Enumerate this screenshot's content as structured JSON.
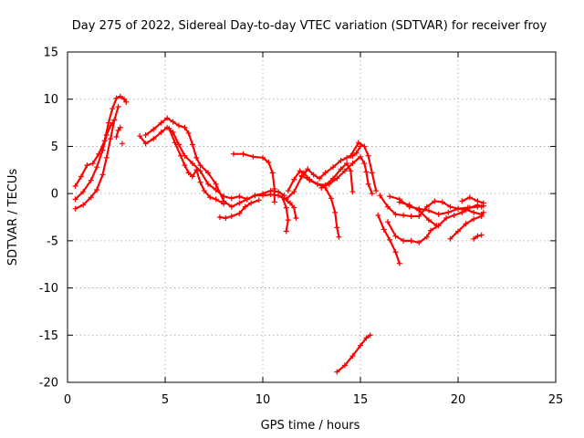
{
  "chart_data": {
    "type": "scatter",
    "title": "Day 275 of 2022, Sidereal Day-to-day VTEC variation (SDTVAR) for receiver froy",
    "xlabel": "GPS time / hours",
    "ylabel": "SDTVAR / TECUs",
    "xlim": [
      0,
      25
    ],
    "ylim": [
      -20,
      15
    ],
    "xticks": [
      0,
      5,
      10,
      15,
      20,
      25
    ],
    "yticks": [
      15,
      10,
      5,
      0,
      -5,
      -10,
      -15,
      -20
    ],
    "grid": true,
    "marker": "+",
    "color": "#ff0000",
    "series": [
      {
        "name": "segment-1",
        "points": [
          [
            0.4,
            0.8
          ],
          [
            0.7,
            1.8
          ],
          [
            1.0,
            3.0
          ],
          [
            1.3,
            3.2
          ],
          [
            1.6,
            4.2
          ],
          [
            1.9,
            5.6
          ],
          [
            2.1,
            7.5
          ],
          [
            2.3,
            9.0
          ],
          [
            2.5,
            10.1
          ],
          [
            2.7,
            10.3
          ],
          [
            2.9,
            10.0
          ],
          [
            3.0,
            9.7
          ]
        ]
      },
      {
        "name": "segment-2",
        "points": [
          [
            0.4,
            -1.6
          ],
          [
            0.8,
            -1.2
          ],
          [
            1.2,
            -0.4
          ],
          [
            1.5,
            0.4
          ],
          [
            1.8,
            2.0
          ],
          [
            2.0,
            3.8
          ],
          [
            2.2,
            5.8
          ],
          [
            2.4,
            7.8
          ],
          [
            2.6,
            9.2
          ]
        ]
      },
      {
        "name": "segment-3",
        "points": [
          [
            0.4,
            -0.6
          ],
          [
            0.8,
            0.2
          ],
          [
            1.2,
            1.4
          ],
          [
            1.5,
            2.8
          ],
          [
            1.8,
            4.6
          ],
          [
            2.0,
            6.2
          ],
          [
            2.2,
            7.2
          ],
          [
            2.4,
            7.8
          ]
        ]
      },
      {
        "name": "segment-4",
        "points": [
          [
            2.5,
            6.0
          ],
          [
            2.6,
            6.7
          ],
          [
            2.7,
            7.0
          ]
        ]
      },
      {
        "name": "segment-5",
        "points": [
          [
            2.8,
            5.3
          ]
        ]
      },
      {
        "name": "segment-6",
        "points": [
          [
            3.7,
            6.1
          ],
          [
            4.0,
            5.3
          ],
          [
            4.4,
            5.8
          ],
          [
            4.8,
            6.5
          ],
          [
            5.1,
            7.0
          ],
          [
            5.4,
            6.5
          ],
          [
            5.7,
            5.2
          ],
          [
            6.0,
            4.0
          ],
          [
            6.4,
            3.2
          ],
          [
            6.8,
            2.4
          ],
          [
            7.2,
            1.0
          ],
          [
            7.6,
            0.4
          ],
          [
            8.0,
            -0.3
          ],
          [
            8.4,
            -0.5
          ],
          [
            8.8,
            -0.3
          ],
          [
            9.2,
            -0.6
          ],
          [
            9.6,
            -0.2
          ],
          [
            10.0,
            -0.2
          ],
          [
            10.4,
            -0.1
          ],
          [
            10.8,
            -0.2
          ],
          [
            11.2,
            -0.6
          ],
          [
            11.6,
            0.2
          ],
          [
            12.0,
            1.8
          ],
          [
            12.3,
            2.6
          ],
          [
            12.6,
            2.0
          ],
          [
            12.9,
            1.6
          ],
          [
            13.2,
            2.2
          ],
          [
            13.6,
            2.8
          ],
          [
            14.0,
            3.5
          ],
          [
            14.3,
            3.8
          ],
          [
            14.6,
            4.0
          ],
          [
            14.8,
            4.3
          ],
          [
            15.0,
            5.0
          ]
        ]
      },
      {
        "name": "segment-7",
        "points": [
          [
            4.0,
            6.2
          ],
          [
            4.4,
            6.8
          ],
          [
            4.8,
            7.5
          ],
          [
            5.1,
            8.0
          ],
          [
            5.4,
            7.6
          ],
          [
            5.7,
            7.2
          ],
          [
            6.0,
            7.0
          ],
          [
            6.2,
            6.4
          ],
          [
            6.4,
            5.2
          ],
          [
            6.6,
            3.8
          ],
          [
            6.8,
            3.0
          ],
          [
            7.2,
            2.2
          ],
          [
            7.6,
            1.0
          ],
          [
            8.0,
            -0.8
          ],
          [
            8.4,
            -1.4
          ],
          [
            8.8,
            -1.0
          ],
          [
            9.2,
            -0.6
          ],
          [
            9.6,
            -0.2
          ],
          [
            10.0,
            0.0
          ],
          [
            10.4,
            0.3
          ],
          [
            10.8,
            0.2
          ],
          [
            11.1,
            -0.2
          ]
        ]
      },
      {
        "name": "segment-8",
        "points": [
          [
            5.2,
            6.9
          ],
          [
            5.5,
            5.4
          ],
          [
            5.8,
            4.0
          ],
          [
            6.0,
            3.0
          ],
          [
            6.2,
            2.2
          ],
          [
            6.4,
            1.8
          ],
          [
            6.6,
            2.5
          ],
          [
            6.8,
            1.2
          ],
          [
            7.0,
            0.3
          ],
          [
            7.3,
            -0.4
          ],
          [
            7.6,
            -0.6
          ],
          [
            8.0,
            -1.1
          ]
        ]
      },
      {
        "name": "segment-9",
        "points": [
          [
            7.8,
            -2.5
          ],
          [
            8.1,
            -2.6
          ],
          [
            8.4,
            -2.4
          ],
          [
            8.8,
            -2.1
          ],
          [
            9.1,
            -1.4
          ],
          [
            9.4,
            -1.0
          ],
          [
            9.8,
            -0.7
          ]
        ]
      },
      {
        "name": "segment-10",
        "points": [
          [
            8.5,
            4.2
          ],
          [
            9.0,
            4.2
          ],
          [
            9.5,
            3.9
          ],
          [
            10.0,
            3.8
          ],
          [
            10.3,
            3.3
          ],
          [
            10.5,
            2.2
          ],
          [
            10.6,
            0.5
          ],
          [
            10.6,
            -0.9
          ]
        ]
      },
      {
        "name": "segment-11",
        "points": [
          [
            11.0,
            -0.4
          ],
          [
            11.2,
            -1.5
          ],
          [
            11.3,
            -2.8
          ],
          [
            11.2,
            -4.0
          ]
        ]
      },
      {
        "name": "segment-12",
        "points": [
          [
            11.1,
            -0.5
          ],
          [
            11.4,
            -1.0
          ],
          [
            11.6,
            -1.5
          ],
          [
            11.7,
            -2.6
          ]
        ]
      },
      {
        "name": "segment-13",
        "points": [
          [
            11.3,
            0.3
          ],
          [
            11.6,
            1.5
          ],
          [
            11.9,
            2.4
          ],
          [
            12.1,
            2.2
          ],
          [
            12.4,
            1.5
          ],
          [
            12.8,
            1.0
          ],
          [
            13.2,
            0.6
          ],
          [
            13.5,
            -0.5
          ],
          [
            13.7,
            -2.0
          ],
          [
            13.8,
            -3.6
          ],
          [
            13.9,
            -4.6
          ]
        ]
      },
      {
        "name": "segment-14",
        "points": [
          [
            12.0,
            1.9
          ],
          [
            12.4,
            1.4
          ],
          [
            12.8,
            1.0
          ],
          [
            13.2,
            0.9
          ],
          [
            13.6,
            1.6
          ],
          [
            14.0,
            2.6
          ],
          [
            14.3,
            3.2
          ],
          [
            14.5,
            2.4
          ],
          [
            14.6,
            0.2
          ]
        ]
      },
      {
        "name": "segment-15",
        "points": [
          [
            13.0,
            0.6
          ],
          [
            13.4,
            1.0
          ],
          [
            13.8,
            1.6
          ],
          [
            14.2,
            2.4
          ],
          [
            14.6,
            3.2
          ],
          [
            15.0,
            3.9
          ],
          [
            15.2,
            3.2
          ],
          [
            15.3,
            2.3
          ],
          [
            15.4,
            1.0
          ],
          [
            15.6,
            0.0
          ]
        ]
      },
      {
        "name": "segment-16",
        "points": [
          [
            14.5,
            4.0
          ],
          [
            14.9,
            5.4
          ],
          [
            15.2,
            5.0
          ],
          [
            15.4,
            4.0
          ],
          [
            15.6,
            2.2
          ],
          [
            15.8,
            0.3
          ]
        ]
      },
      {
        "name": "segment-17",
        "points": [
          [
            15.9,
            -2.3
          ],
          [
            16.2,
            -3.8
          ],
          [
            16.5,
            -4.9
          ],
          [
            16.8,
            -6.2
          ],
          [
            17.0,
            -7.4
          ]
        ]
      },
      {
        "name": "segment-18",
        "points": [
          [
            16.0,
            -0.2
          ],
          [
            16.4,
            -1.4
          ],
          [
            16.8,
            -2.2
          ],
          [
            17.2,
            -2.3
          ],
          [
            17.6,
            -2.4
          ],
          [
            18.0,
            -2.4
          ],
          [
            18.4,
            -1.4
          ],
          [
            18.8,
            -0.8
          ],
          [
            19.2,
            -0.9
          ],
          [
            19.6,
            -1.4
          ],
          [
            20.0,
            -1.6
          ],
          [
            20.4,
            -1.7
          ],
          [
            20.8,
            -2.0
          ],
          [
            21.2,
            -2.2
          ]
        ]
      },
      {
        "name": "segment-19",
        "points": [
          [
            16.4,
            -3.0
          ],
          [
            16.8,
            -4.5
          ],
          [
            17.2,
            -5.0
          ],
          [
            17.6,
            -5.0
          ],
          [
            18.0,
            -5.2
          ],
          [
            18.4,
            -4.6
          ],
          [
            18.6,
            -3.9
          ],
          [
            19.0,
            -3.4
          ],
          [
            19.4,
            -2.6
          ],
          [
            19.8,
            -2.3
          ],
          [
            20.2,
            -2.0
          ],
          [
            20.6,
            -1.5
          ],
          [
            21.0,
            -1.2
          ],
          [
            21.2,
            -1.4
          ]
        ]
      },
      {
        "name": "segment-20",
        "points": [
          [
            16.5,
            -0.3
          ],
          [
            17.0,
            -0.6
          ],
          [
            17.5,
            -1.4
          ],
          [
            18.0,
            -1.6
          ],
          [
            18.5,
            -1.8
          ],
          [
            19.0,
            -2.2
          ],
          [
            19.5,
            -2.0
          ],
          [
            20.0,
            -1.6
          ],
          [
            20.5,
            -1.5
          ],
          [
            21.0,
            -1.4
          ],
          [
            21.3,
            -1.3
          ]
        ]
      },
      {
        "name": "segment-21",
        "points": [
          [
            17.0,
            -0.9
          ],
          [
            17.5,
            -1.2
          ],
          [
            18.0,
            -1.8
          ],
          [
            18.5,
            -2.8
          ],
          [
            18.9,
            -3.4
          ]
        ]
      },
      {
        "name": "segment-22",
        "points": [
          [
            19.6,
            -4.8
          ],
          [
            20.0,
            -4.0
          ],
          [
            20.4,
            -3.2
          ],
          [
            20.8,
            -2.7
          ],
          [
            21.2,
            -2.4
          ],
          [
            21.3,
            -2.0
          ]
        ]
      },
      {
        "name": "segment-23",
        "points": [
          [
            20.2,
            -0.8
          ],
          [
            20.6,
            -0.4
          ],
          [
            21.0,
            -0.8
          ],
          [
            21.3,
            -1.0
          ]
        ]
      },
      {
        "name": "segment-24",
        "points": [
          [
            20.8,
            -4.8
          ],
          [
            21.0,
            -4.5
          ],
          [
            21.2,
            -4.4
          ]
        ]
      },
      {
        "name": "segment-25",
        "points": [
          [
            13.8,
            -18.9
          ],
          [
            14.2,
            -18.2
          ],
          [
            14.6,
            -17.2
          ],
          [
            15.0,
            -16.1
          ],
          [
            15.3,
            -15.3
          ],
          [
            15.5,
            -15.0
          ]
        ]
      }
    ]
  }
}
